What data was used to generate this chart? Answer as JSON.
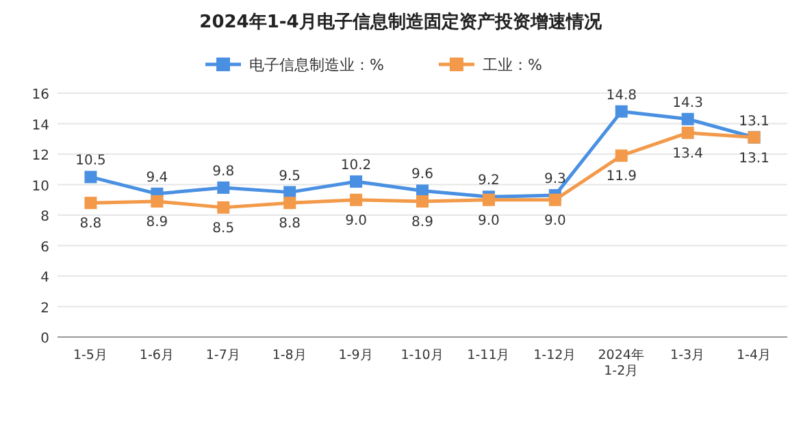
{
  "chart_data": {
    "type": "line",
    "title": "2024年1-4月电子信息制造固定资产投资增速情况",
    "categories": [
      "1-5月",
      "1-6月",
      "1-7月",
      "1-8月",
      "1-9月",
      "1-10月",
      "1-11月",
      "1-12月",
      "2024年\n1-2月",
      "1-3月",
      "1-4月"
    ],
    "series": [
      {
        "name": "电子信息制造业：%",
        "color": "#4a90e2",
        "values": [
          10.5,
          9.4,
          9.8,
          9.5,
          10.2,
          9.6,
          9.2,
          9.3,
          14.8,
          14.3,
          13.1
        ],
        "value_labels": [
          "10.5",
          "9.4",
          "9.8",
          "9.5",
          "10.2",
          "9.6",
          "9.2",
          "9.3",
          "14.8",
          "14.3",
          "13.1"
        ]
      },
      {
        "name": "工业：%",
        "color": "#f39a4a",
        "values": [
          8.8,
          8.9,
          8.5,
          8.8,
          9.0,
          8.9,
          9.0,
          9.0,
          11.9,
          13.4,
          13.1
        ],
        "value_labels": [
          "8.8",
          "8.9",
          "8.5",
          "8.8",
          "9.0",
          "8.9",
          "9.0",
          "9.0",
          "11.9",
          "13.4",
          "13.1"
        ]
      }
    ],
    "ylim": [
      0,
      16
    ],
    "yticks": [
      0,
      2,
      4,
      6,
      8,
      10,
      12,
      14,
      16
    ],
    "grid": "y",
    "legend": "top",
    "marker": "square",
    "line_style": "solid"
  }
}
